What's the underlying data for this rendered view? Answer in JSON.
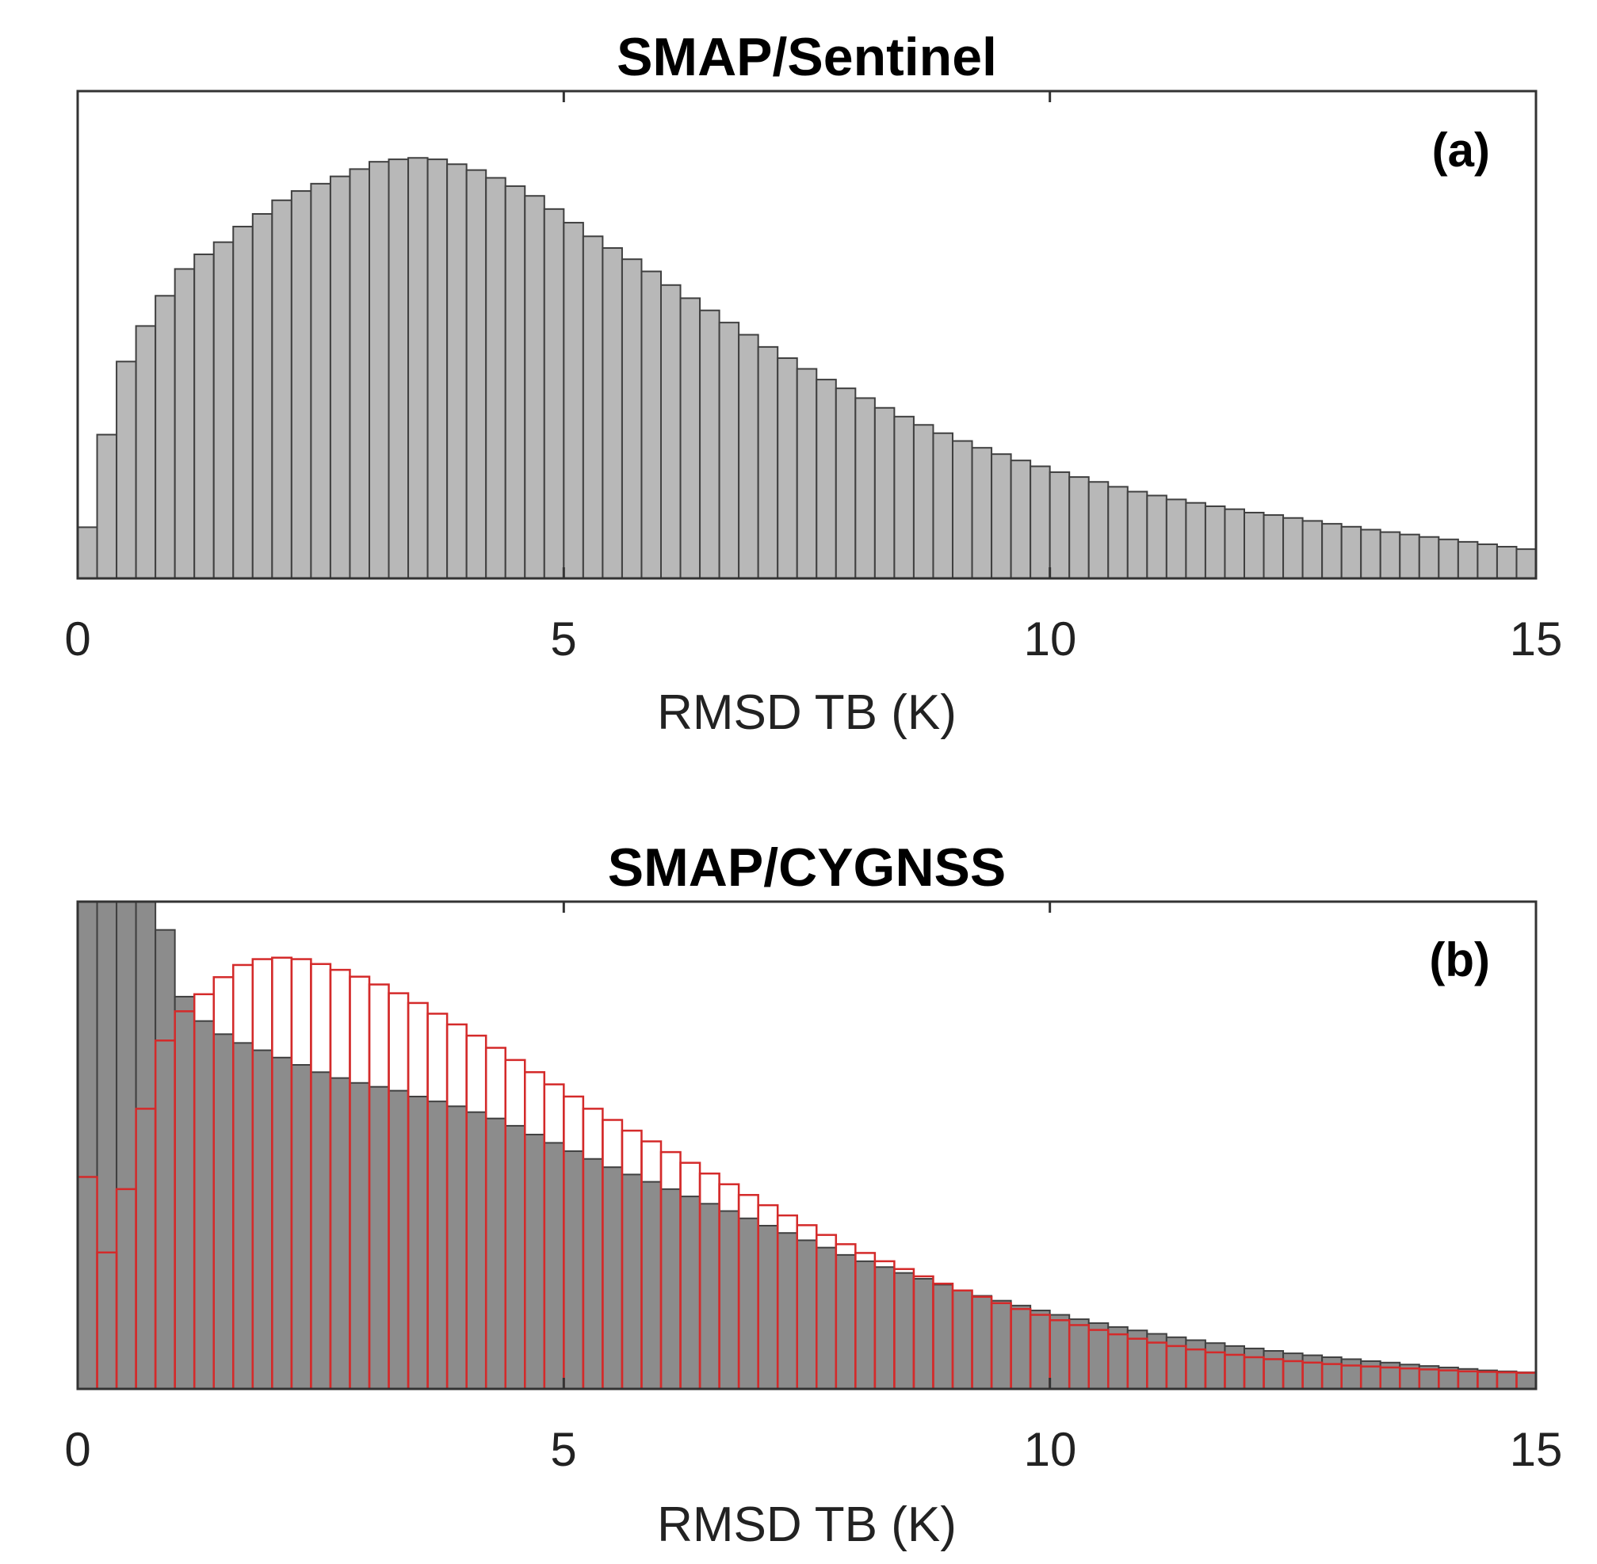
{
  "chart_data": [
    {
      "type": "bar",
      "panel": "(a)",
      "title": "SMAP/Sentinel",
      "xlabel": "RMSD TB (K)",
      "ylabel": "",
      "xlim": [
        0,
        15
      ],
      "ylim": [
        0,
        1.0
      ],
      "xticks": [
        "0",
        "5",
        "10",
        "15"
      ],
      "bin_width": 0.2,
      "series": [
        {
          "name": "SMAP/Sentinel",
          "fill": "#b8b8b8",
          "edge": "#404040",
          "values": [
            0.105,
            0.295,
            0.445,
            0.518,
            0.58,
            0.635,
            0.665,
            0.69,
            0.722,
            0.748,
            0.776,
            0.795,
            0.81,
            0.825,
            0.84,
            0.855,
            0.86,
            0.863,
            0.86,
            0.85,
            0.838,
            0.822,
            0.805,
            0.785,
            0.758,
            0.73,
            0.702,
            0.678,
            0.655,
            0.63,
            0.602,
            0.575,
            0.55,
            0.525,
            0.5,
            0.475,
            0.452,
            0.43,
            0.408,
            0.39,
            0.37,
            0.35,
            0.332,
            0.315,
            0.298,
            0.282,
            0.268,
            0.255,
            0.242,
            0.23,
            0.218,
            0.208,
            0.198,
            0.188,
            0.178,
            0.17,
            0.162,
            0.155,
            0.148,
            0.142,
            0.135,
            0.13,
            0.124,
            0.118,
            0.112,
            0.106,
            0.1,
            0.095,
            0.09,
            0.085,
            0.08,
            0.075,
            0.07,
            0.065,
            0.06
          ]
        }
      ]
    },
    {
      "type": "bar",
      "panel": "(b)",
      "title": "SMAP/CYGNSS",
      "xlabel": "RMSD TB (K)",
      "ylabel": "",
      "xlim": [
        0,
        15
      ],
      "ylim": [
        0,
        1.0
      ],
      "xticks": [
        "0",
        "5",
        "10",
        "15"
      ],
      "bin_width": 0.2,
      "series": [
        {
          "name": "SMAP/CYGNSS (filled)",
          "fill": "#8c8c8c",
          "edge": "#404040",
          "values": [
            1.0,
            1.0,
            1.0,
            1.0,
            0.942,
            0.805,
            0.755,
            0.728,
            0.71,
            0.695,
            0.68,
            0.665,
            0.65,
            0.638,
            0.628,
            0.62,
            0.612,
            0.6,
            0.59,
            0.58,
            0.568,
            0.555,
            0.54,
            0.522,
            0.505,
            0.488,
            0.472,
            0.455,
            0.44,
            0.425,
            0.41,
            0.395,
            0.38,
            0.365,
            0.35,
            0.335,
            0.32,
            0.305,
            0.29,
            0.275,
            0.262,
            0.25,
            0.238,
            0.226,
            0.214,
            0.202,
            0.191,
            0.181,
            0.171,
            0.161,
            0.152,
            0.143,
            0.135,
            0.127,
            0.12,
            0.113,
            0.106,
            0.1,
            0.094,
            0.088,
            0.083,
            0.078,
            0.073,
            0.069,
            0.065,
            0.061,
            0.057,
            0.054,
            0.05,
            0.047,
            0.044,
            0.041,
            0.038,
            0.036,
            0.034
          ]
        },
        {
          "name": "SMAP/CYGNSS (outline)",
          "fill": "none",
          "edge": "#d42a2a",
          "values": [
            0.435,
            0.28,
            0.41,
            0.575,
            0.715,
            0.775,
            0.81,
            0.845,
            0.87,
            0.882,
            0.885,
            0.882,
            0.872,
            0.86,
            0.846,
            0.83,
            0.812,
            0.792,
            0.77,
            0.748,
            0.725,
            0.7,
            0.675,
            0.65,
            0.625,
            0.6,
            0.575,
            0.552,
            0.53,
            0.508,
            0.486,
            0.464,
            0.442,
            0.42,
            0.398,
            0.377,
            0.356,
            0.336,
            0.316,
            0.297,
            0.279,
            0.262,
            0.246,
            0.231,
            0.216,
            0.202,
            0.189,
            0.176,
            0.164,
            0.152,
            0.141,
            0.131,
            0.121,
            0.112,
            0.103,
            0.095,
            0.088,
            0.081,
            0.075,
            0.07,
            0.065,
            0.061,
            0.057,
            0.054,
            0.051,
            0.048,
            0.046,
            0.044,
            0.042,
            0.04,
            0.038,
            0.036,
            0.035,
            0.034,
            0.033
          ]
        }
      ]
    }
  ]
}
